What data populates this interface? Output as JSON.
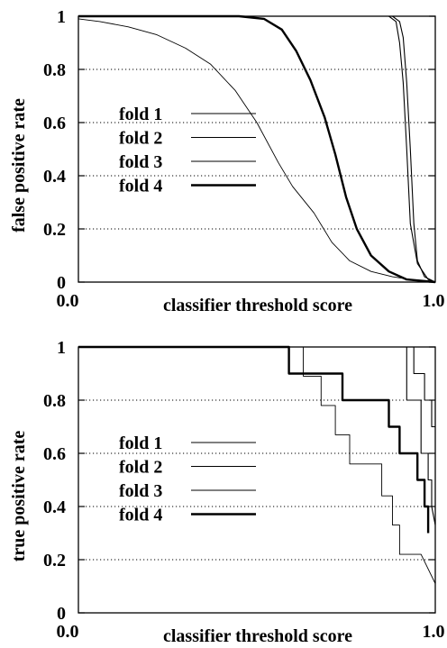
{
  "chart_data": [
    {
      "type": "line",
      "xlabel": "classifier threshold score",
      "ylabel": "false positive rate",
      "xlim": [
        0.0,
        1.0
      ],
      "ylim": [
        0,
        1
      ],
      "x_tick_labels": [
        "0.0",
        "1.0"
      ],
      "y_tick_labels": [
        "0",
        "0.2",
        "0.4",
        "0.6",
        "0.8",
        "1"
      ],
      "grid": "horizontal dotted at 0.2, 0.4, 0.6, 0.8",
      "legend_position": "left-center",
      "series": [
        {
          "name": "fold 1",
          "width": 1.1,
          "points": [
            [
              0.0,
              1.0
            ],
            [
              0.88,
              1.0
            ],
            [
              0.9,
              0.98
            ],
            [
              0.91,
              0.92
            ],
            [
              0.92,
              0.75
            ],
            [
              0.93,
              0.5
            ],
            [
              0.94,
              0.22
            ],
            [
              0.95,
              0.08
            ],
            [
              0.97,
              0.02
            ],
            [
              1.0,
              0.0
            ]
          ]
        },
        {
          "name": "fold 2",
          "width": 0.9,
          "points": [
            [
              0.0,
              0.99
            ],
            [
              0.06,
              0.98
            ],
            [
              0.14,
              0.96
            ],
            [
              0.22,
              0.93
            ],
            [
              0.3,
              0.88
            ],
            [
              0.37,
              0.82
            ],
            [
              0.44,
              0.72
            ],
            [
              0.5,
              0.6
            ],
            [
              0.56,
              0.45
            ],
            [
              0.6,
              0.36
            ],
            [
              0.66,
              0.26
            ],
            [
              0.71,
              0.15
            ],
            [
              0.76,
              0.08
            ],
            [
              0.82,
              0.04
            ],
            [
              0.88,
              0.02
            ],
            [
              0.93,
              0.01
            ],
            [
              0.97,
              0.0
            ],
            [
              1.0,
              0.0
            ]
          ]
        },
        {
          "name": "fold 3",
          "width": 1.1,
          "points": [
            [
              0.0,
              1.0
            ],
            [
              0.87,
              1.0
            ],
            [
              0.89,
              0.98
            ],
            [
              0.9,
              0.9
            ],
            [
              0.91,
              0.75
            ],
            [
              0.92,
              0.5
            ],
            [
              0.93,
              0.22
            ],
            [
              0.95,
              0.07
            ],
            [
              0.98,
              0.01
            ],
            [
              1.0,
              0.0
            ]
          ]
        },
        {
          "name": "fold 4",
          "width": 2.4,
          "points": [
            [
              0.0,
              1.0
            ],
            [
              0.45,
              1.0
            ],
            [
              0.52,
              0.99
            ],
            [
              0.57,
              0.95
            ],
            [
              0.61,
              0.87
            ],
            [
              0.65,
              0.76
            ],
            [
              0.69,
              0.62
            ],
            [
              0.72,
              0.48
            ],
            [
              0.75,
              0.32
            ],
            [
              0.78,
              0.2
            ],
            [
              0.82,
              0.1
            ],
            [
              0.87,
              0.04
            ],
            [
              0.92,
              0.01
            ],
            [
              1.0,
              0.0
            ]
          ]
        }
      ]
    },
    {
      "type": "line",
      "xlabel": "classifier threshold score",
      "ylabel": "true positive rate",
      "xlim": [
        0.0,
        1.0
      ],
      "ylim": [
        0,
        1
      ],
      "x_tick_labels": [
        "0.0",
        "1.0"
      ],
      "y_tick_labels": [
        "0",
        "0.2",
        "0.4",
        "0.6",
        "0.8",
        "1"
      ],
      "grid": "horizontal dotted at 0.2, 0.4, 0.6, 0.8",
      "legend_position": "left-center",
      "series": [
        {
          "name": "fold 1",
          "width": 1.1,
          "points": [
            [
              0.0,
              1.0
            ],
            [
              0.94,
              1.0
            ],
            [
              0.94,
              0.9
            ],
            [
              0.97,
              0.9
            ],
            [
              0.97,
              0.8
            ],
            [
              0.99,
              0.8
            ],
            [
              0.99,
              0.7
            ],
            [
              1.0,
              0.7
            ]
          ]
        },
        {
          "name": "fold 2",
          "width": 0.9,
          "points": [
            [
              0.0,
              1.0
            ],
            [
              0.63,
              1.0
            ],
            [
              0.63,
              0.89
            ],
            [
              0.68,
              0.89
            ],
            [
              0.68,
              0.78
            ],
            [
              0.72,
              0.78
            ],
            [
              0.72,
              0.67
            ],
            [
              0.76,
              0.67
            ],
            [
              0.76,
              0.56
            ],
            [
              0.85,
              0.56
            ],
            [
              0.85,
              0.44
            ],
            [
              0.88,
              0.44
            ],
            [
              0.88,
              0.33
            ],
            [
              0.9,
              0.33
            ],
            [
              0.9,
              0.22
            ],
            [
              0.96,
              0.22
            ],
            [
              1.0,
              0.11
            ]
          ]
        },
        {
          "name": "fold 3",
          "width": 1.1,
          "points": [
            [
              0.0,
              1.0
            ],
            [
              0.92,
              1.0
            ],
            [
              0.92,
              0.8
            ],
            [
              0.96,
              0.8
            ],
            [
              0.96,
              0.6
            ],
            [
              0.98,
              0.6
            ],
            [
              0.98,
              0.5
            ],
            [
              0.99,
              0.5
            ],
            [
              0.99,
              0.4
            ],
            [
              1.0,
              0.33
            ]
          ]
        },
        {
          "name": "fold 4",
          "width": 2.4,
          "points": [
            [
              0.0,
              1.0
            ],
            [
              0.59,
              1.0
            ],
            [
              0.59,
              0.9
            ],
            [
              0.74,
              0.9
            ],
            [
              0.74,
              0.8
            ],
            [
              0.87,
              0.8
            ],
            [
              0.87,
              0.7
            ],
            [
              0.9,
              0.7
            ],
            [
              0.9,
              0.6
            ],
            [
              0.95,
              0.6
            ],
            [
              0.95,
              0.5
            ],
            [
              0.97,
              0.5
            ],
            [
              0.97,
              0.4
            ],
            [
              0.98,
              0.4
            ],
            [
              0.98,
              0.3
            ]
          ]
        }
      ]
    }
  ]
}
